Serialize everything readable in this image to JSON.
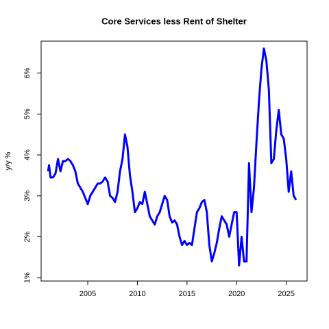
{
  "chart_data": {
    "type": "line",
    "title": "Core Services less Rent of Shelter",
    "y_label": "y/y %",
    "series": [
      {
        "name": "Core Services less Rent of Shelter",
        "color": "#0000ff",
        "x": [
          2001.0,
          2001.1,
          2001.25,
          2001.5,
          2001.75,
          2002.0,
          2002.25,
          2002.5,
          2002.75,
          2003.0,
          2003.25,
          2003.5,
          2003.75,
          2004.0,
          2004.25,
          2004.5,
          2004.75,
          2005.0,
          2005.25,
          2005.5,
          2005.75,
          2006.0,
          2006.25,
          2006.5,
          2006.75,
          2007.0,
          2007.25,
          2007.5,
          2007.75,
          2008.0,
          2008.25,
          2008.5,
          2008.75,
          2009.0,
          2009.25,
          2009.5,
          2009.75,
          2010.0,
          2010.25,
          2010.5,
          2010.75,
          2011.0,
          2011.25,
          2011.5,
          2011.75,
          2012.0,
          2012.25,
          2012.5,
          2012.75,
          2013.0,
          2013.25,
          2013.5,
          2013.75,
          2014.0,
          2014.25,
          2014.5,
          2014.75,
          2015.0,
          2015.25,
          2015.5,
          2015.75,
          2016.0,
          2016.25,
          2016.5,
          2016.75,
          2017.0,
          2017.25,
          2017.5,
          2017.75,
          2018.0,
          2018.25,
          2018.5,
          2018.75,
          2019.0,
          2019.25,
          2019.5,
          2019.75,
          2020.0,
          2020.25,
          2020.5,
          2020.75,
          2021.0,
          2021.25,
          2021.5,
          2021.75,
          2022.0,
          2022.25,
          2022.5,
          2022.75,
          2023.0,
          2023.25,
          2023.5,
          2023.75,
          2024.0,
          2024.25,
          2024.5,
          2024.75,
          2025.0,
          2025.25,
          2025.5,
          2025.75,
          2026.0
        ],
        "values": [
          3.6,
          3.75,
          3.45,
          3.45,
          3.55,
          3.9,
          3.6,
          3.85,
          3.85,
          3.9,
          3.85,
          3.75,
          3.6,
          3.3,
          3.2,
          3.1,
          2.95,
          2.8,
          3.0,
          3.1,
          3.2,
          3.3,
          3.3,
          3.35,
          3.45,
          3.35,
          3.0,
          2.95,
          2.85,
          3.1,
          3.6,
          3.9,
          4.5,
          4.2,
          3.5,
          3.1,
          2.6,
          2.7,
          2.85,
          2.8,
          3.1,
          2.8,
          2.5,
          2.4,
          2.3,
          2.5,
          2.6,
          2.8,
          3.0,
          2.9,
          2.5,
          2.35,
          2.4,
          2.3,
          2.0,
          1.8,
          1.9,
          1.8,
          1.85,
          1.8,
          2.2,
          2.6,
          2.7,
          2.85,
          2.9,
          2.6,
          1.8,
          1.4,
          1.6,
          1.85,
          2.2,
          2.5,
          2.4,
          2.3,
          2.0,
          2.3,
          2.6,
          2.6,
          1.3,
          2.0,
          1.4,
          1.4,
          3.8,
          2.6,
          3.2,
          4.3,
          5.3,
          6.1,
          6.6,
          6.3,
          5.6,
          3.8,
          3.9,
          4.6,
          5.1,
          4.5,
          4.4,
          3.9,
          3.1,
          3.6,
          3.0,
          2.9
        ]
      }
    ],
    "xlim": [
      2000.3,
      2027.1
    ],
    "xticks": [
      2005,
      2010,
      2015,
      2020,
      2025
    ],
    "ylim": [
      0.92,
      6.78
    ],
    "yticks": [
      {
        "value": 1,
        "label": "1%"
      },
      {
        "value": 2,
        "label": "2%"
      },
      {
        "value": 3,
        "label": "3%"
      },
      {
        "value": 4,
        "label": "4%"
      },
      {
        "value": 5,
        "label": "5%"
      },
      {
        "value": 6,
        "label": "6%"
      }
    ]
  }
}
